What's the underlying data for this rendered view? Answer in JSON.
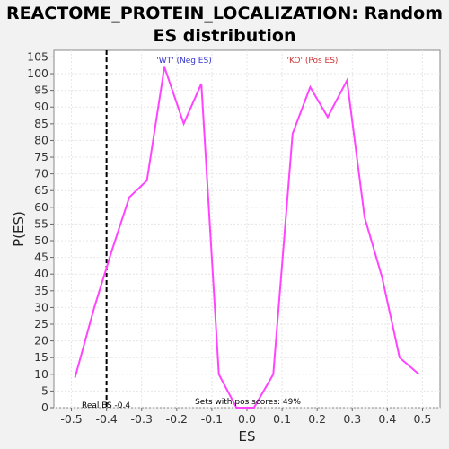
{
  "chart_data": {
    "type": "line",
    "title_line1": "REACTOME_PROTEIN_LOCALIZATION: Random",
    "title_line2": "ES distribution",
    "xlabel": "ES",
    "ylabel": "P(ES)",
    "xlim": [
      -0.55,
      0.55
    ],
    "ylim": [
      0,
      107
    ],
    "x_ticks": [
      -0.5,
      -0.4,
      -0.3,
      -0.2,
      -0.1,
      0.0,
      0.1,
      0.2,
      0.3,
      0.4,
      0.5
    ],
    "x_tick_labels": [
      "-0.5",
      "-0.4",
      "-0.3",
      "-0.2",
      "-0.1",
      "0.0",
      "0.1",
      "0.2",
      "0.3",
      "0.4",
      "0.5"
    ],
    "y_ticks": [
      0,
      5,
      10,
      15,
      20,
      25,
      30,
      35,
      40,
      45,
      50,
      55,
      60,
      65,
      70,
      75,
      80,
      85,
      90,
      95,
      100,
      105
    ],
    "grid": true,
    "series": [
      {
        "color": "#ff44ff",
        "x": [
          -0.49,
          -0.435,
          -0.385,
          -0.335,
          -0.285,
          -0.235,
          -0.18,
          -0.13,
          -0.08,
          -0.03,
          0.02,
          0.075,
          0.13,
          0.18,
          0.23,
          0.285,
          0.335,
          0.385,
          0.435,
          0.49
        ],
        "y": [
          9,
          30,
          47,
          63,
          68,
          102,
          85,
          97,
          10,
          0,
          0,
          10,
          82,
          96,
          87,
          98,
          57,
          39,
          15,
          10
        ]
      }
    ],
    "real_es": {
      "x": -0.4,
      "label": "Real ES -0.4"
    },
    "annotations": [
      {
        "text": "'WT' (Neg ES)",
        "color": "#3333cc"
      },
      {
        "text": "'KO' (Pos ES)",
        "color": "#cc3333"
      },
      {
        "text": "Sets with pos scores: 49%",
        "color": "#000000"
      }
    ]
  }
}
